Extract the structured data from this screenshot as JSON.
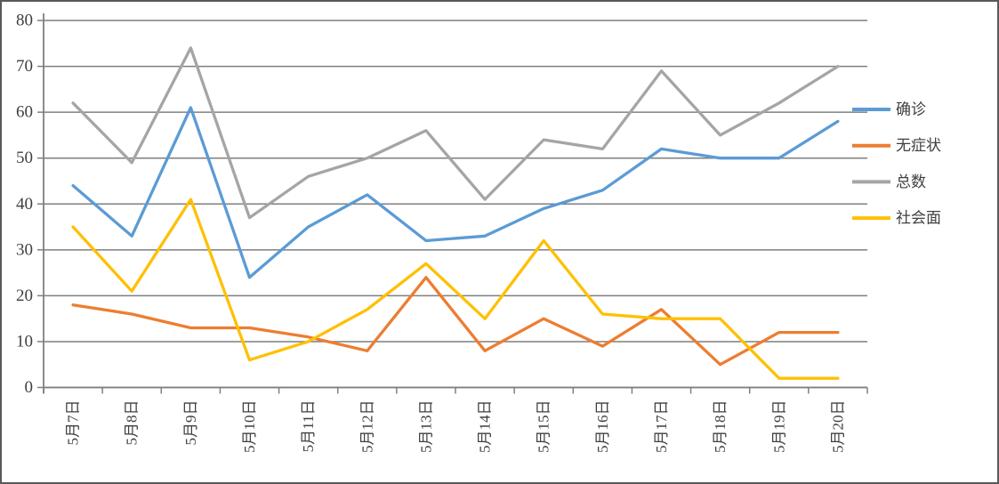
{
  "chart_data": {
    "type": "line",
    "title": "",
    "categories": [
      "5月7日",
      "5月8日",
      "5月9日",
      "5月10日",
      "5月11日",
      "5月12日",
      "5月13日",
      "5月14日",
      "5月15日",
      "5月16日",
      "5月17日",
      "5月18日",
      "5月19日",
      "5月20日"
    ],
    "series": [
      {
        "name": "确诊",
        "color": "#5B9BD5",
        "values": [
          44,
          33,
          61,
          24,
          35,
          42,
          32,
          33,
          39,
          43,
          52,
          50,
          50,
          58
        ]
      },
      {
        "name": "无症状",
        "color": "#ED7D31",
        "values": [
          18,
          16,
          13,
          13,
          11,
          8,
          24,
          8,
          15,
          9,
          17,
          5,
          12,
          12
        ]
      },
      {
        "name": "总数",
        "color": "#A5A5A5",
        "values": [
          62,
          49,
          74,
          37,
          46,
          50,
          56,
          41,
          54,
          52,
          69,
          55,
          62,
          70
        ]
      },
      {
        "name": "社会面",
        "color": "#FFC000",
        "values": [
          35,
          21,
          41,
          6,
          10,
          17,
          27,
          15,
          32,
          16,
          15,
          15,
          2,
          2
        ]
      }
    ],
    "ylim": [
      0,
      80
    ],
    "yticks": [
      0,
      10,
      20,
      30,
      40,
      50,
      60,
      70,
      80
    ],
    "xlabel": "",
    "ylabel": "",
    "grid": true,
    "legend_position": "right",
    "x_label_rotation_deg": -90
  },
  "style": {
    "grid_color": "#7F7F7F",
    "axis_color": "#7F7F7F",
    "text_color": "#404040",
    "border_color": "#595959",
    "background": "#FFFFFF"
  }
}
